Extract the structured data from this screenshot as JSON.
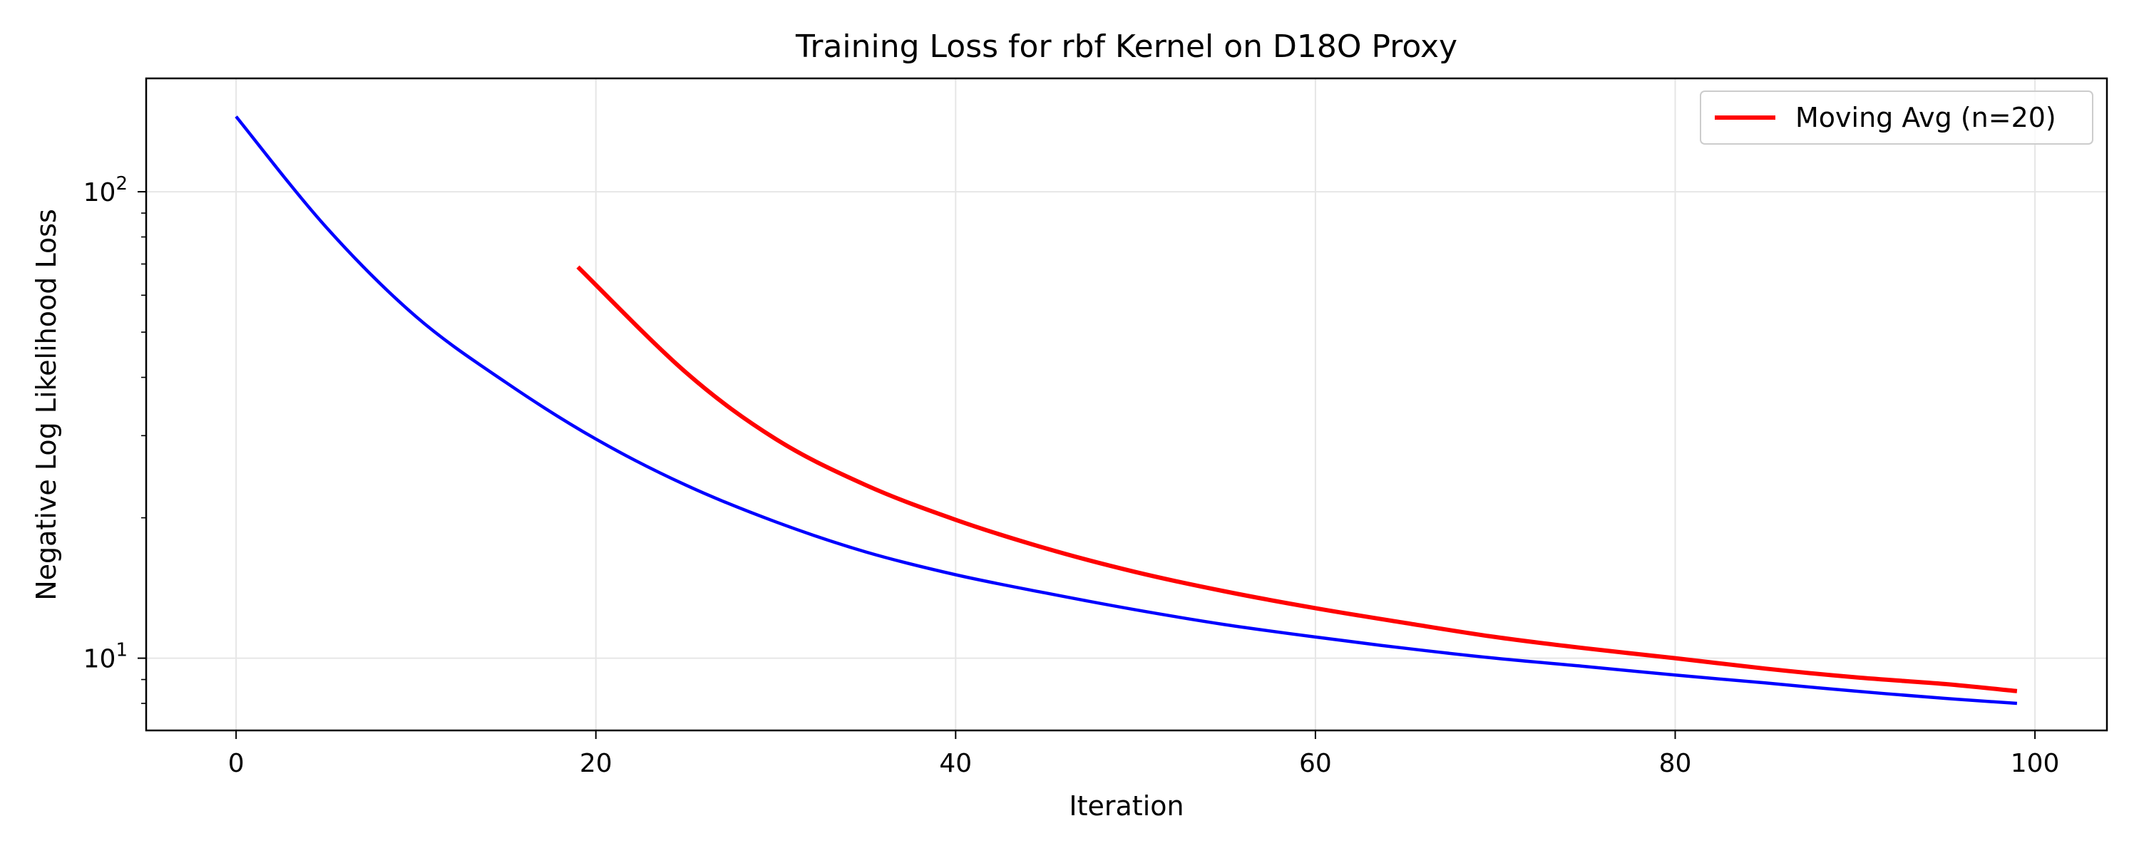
{
  "chart_data": {
    "type": "line",
    "title": "Training Loss for rbf Kernel on D18O Proxy",
    "xlabel": "Iteration",
    "ylabel": "Negative Log Likelihood Loss",
    "xlim": [
      -5,
      104
    ],
    "ylim": [
      7.0,
      175
    ],
    "yscale": "log",
    "x_ticks": [
      0,
      20,
      40,
      60,
      80,
      100
    ],
    "x_tick_labels": [
      "0",
      "20",
      "40",
      "60",
      "80",
      "100"
    ],
    "y_major_ticks": [
      10,
      100
    ],
    "y_minor_ticks": [
      8,
      9,
      20,
      30,
      40,
      50,
      60,
      70,
      80,
      90
    ],
    "y_tick_labels": [
      {
        "base": "10",
        "exp": "1"
      },
      {
        "base": "10",
        "exp": "2"
      }
    ],
    "grid": true,
    "legend": {
      "placement": "top-right",
      "entries": [
        "Moving Avg (n=20)"
      ]
    },
    "series": [
      {
        "color": "#0000ff",
        "x": [
          0,
          5,
          10,
          15,
          20,
          25,
          30,
          35,
          40,
          45,
          50,
          55,
          60,
          65,
          70,
          75,
          80,
          85,
          90,
          95,
          99
        ],
        "y": [
          145,
          84,
          54,
          39,
          29.5,
          23.5,
          19.6,
          16.9,
          15.1,
          13.8,
          12.7,
          11.8,
          11.1,
          10.5,
          10.0,
          9.6,
          9.2,
          8.85,
          8.5,
          8.2,
          8.0
        ]
      },
      {
        "name": "Moving Avg (n=20)",
        "color": "#ff0000",
        "x": [
          19,
          25,
          30,
          35,
          40,
          45,
          50,
          55,
          60,
          65,
          70,
          75,
          80,
          85,
          90,
          95,
          99
        ],
        "y": [
          69,
          41,
          29.5,
          23.5,
          19.8,
          17.2,
          15.3,
          13.9,
          12.8,
          11.9,
          11.1,
          10.5,
          10.0,
          9.5,
          9.1,
          8.8,
          8.5
        ]
      }
    ]
  }
}
